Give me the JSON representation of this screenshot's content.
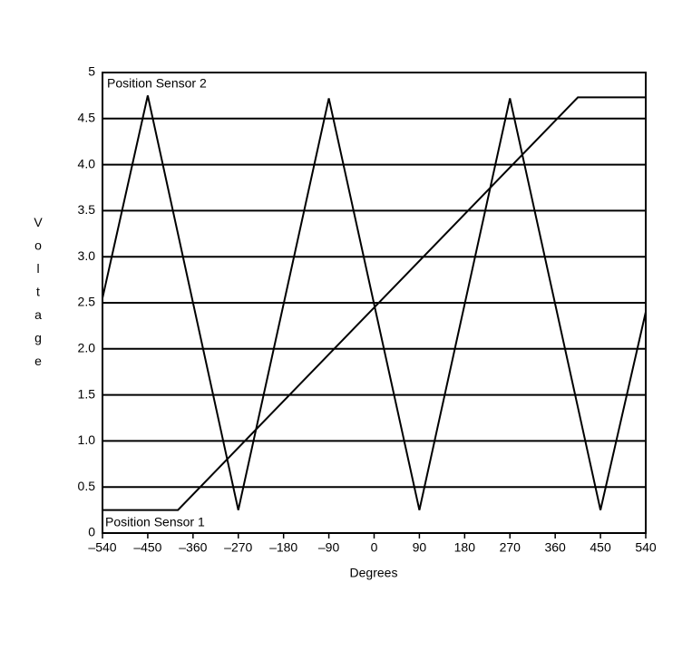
{
  "chart_data": {
    "type": "line",
    "x_label": "Degrees",
    "y_label": "Voltage",
    "xlim": [
      -540,
      540
    ],
    "ylim": [
      0,
      5
    ],
    "xticks": [
      {
        "value": -540,
        "label": "–540"
      },
      {
        "value": -450,
        "label": "–450"
      },
      {
        "value": -360,
        "label": "–360"
      },
      {
        "value": -270,
        "label": "–270"
      },
      {
        "value": -180,
        "label": "–180"
      },
      {
        "value": -90,
        "label": "–90"
      },
      0,
      90,
      180,
      270,
      360,
      450,
      540
    ],
    "yticks": [
      0,
      0.5,
      {
        "value": 1,
        "label": "1.0"
      },
      1.5,
      {
        "value": 2,
        "label": "2.0"
      },
      2.5,
      {
        "value": 3,
        "label": "3.0"
      },
      3.5,
      {
        "value": 4,
        "label": "4.0"
      },
      4.5,
      5
    ],
    "grid": true,
    "series": [
      {
        "name": "Position Sensor 1",
        "color": "#000000",
        "x": [
          -540,
          -390,
          405,
          540
        ],
        "values": [
          0.25,
          0.25,
          4.73,
          4.73
        ]
      },
      {
        "name": "Position Sensor 2",
        "color": "#000000",
        "x": [
          -540,
          -450,
          -270,
          -90,
          90,
          270,
          450,
          540
        ],
        "values": [
          2.55,
          4.75,
          0.25,
          4.72,
          0.25,
          4.72,
          0.25,
          2.4
        ]
      }
    ]
  }
}
